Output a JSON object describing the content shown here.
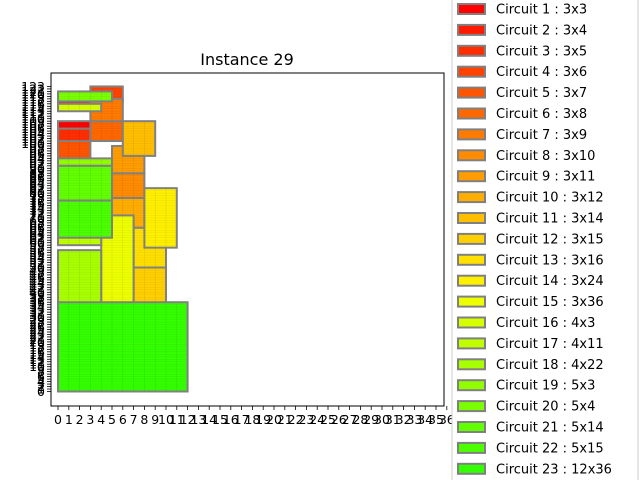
{
  "chart_data": {
    "type": "rectangle-packing",
    "title": "Instance 29",
    "xlim": [
      0,
      36
    ],
    "ylim": [
      0,
      123
    ],
    "x_ticks": [
      0,
      1,
      2,
      3,
      4,
      5,
      6,
      7,
      8,
      9,
      10,
      11,
      12,
      13,
      14,
      15,
      16,
      17,
      18,
      19,
      20,
      21,
      22,
      23,
      24,
      25,
      26,
      27,
      28,
      29,
      30,
      31,
      32,
      33,
      34,
      35,
      36
    ],
    "y_ticks": [
      0,
      1,
      2,
      3,
      4,
      5,
      6,
      7,
      8,
      9,
      10,
      11,
      12,
      13,
      14,
      15,
      16,
      17,
      18,
      19,
      20,
      21,
      22,
      23,
      24,
      25,
      26,
      27,
      28,
      29,
      30,
      31,
      32,
      33,
      34,
      35,
      36,
      37,
      38,
      39,
      40,
      41,
      42,
      43,
      44,
      45,
      46,
      47,
      48,
      49,
      50,
      51,
      52,
      53,
      54,
      55,
      56,
      57,
      58,
      59,
      60,
      61,
      62,
      63,
      64,
      65,
      66,
      67,
      68,
      69,
      70,
      71,
      72,
      73,
      74,
      75,
      76,
      77,
      78,
      79,
      80,
      81,
      82,
      83,
      84,
      85,
      86,
      87,
      88,
      89,
      90,
      91,
      92,
      93,
      94,
      95,
      96,
      97,
      98,
      99,
      100,
      101,
      102,
      103,
      104,
      105,
      106,
      107,
      108,
      109,
      110,
      111,
      112,
      113,
      114,
      115,
      116,
      117,
      118,
      119,
      120,
      121,
      122,
      123
    ],
    "circuits": [
      {
        "label": "Circuit 1 : 3x3",
        "w": 3,
        "h": 3,
        "x": 0,
        "y": 106,
        "color": "#ff0000"
      },
      {
        "label": "Circuit 2 : 3x4",
        "w": 3,
        "h": 4,
        "x": 0,
        "y": 114,
        "color": "#ff1900"
      },
      {
        "label": "Circuit 3 : 3x5",
        "w": 3,
        "h": 5,
        "x": 0,
        "y": 101,
        "color": "#ff2e00"
      },
      {
        "label": "Circuit 4 : 3x6",
        "w": 3,
        "h": 6,
        "x": 3,
        "y": 117,
        "color": "#ff4200"
      },
      {
        "label": "Circuit 5 : 3x7",
        "w": 3,
        "h": 7,
        "x": 0,
        "y": 94,
        "color": "#ff5500"
      },
      {
        "label": "Circuit 6 : 3x8",
        "w": 3,
        "h": 8,
        "x": 3,
        "y": 101,
        "color": "#ff6800"
      },
      {
        "label": "Circuit 7 : 3x9",
        "w": 3,
        "h": 9,
        "x": 3,
        "y": 109,
        "color": "#ff7a00"
      },
      {
        "label": "Circuit 8 : 3x10",
        "w": 3,
        "h": 10,
        "x": 5,
        "y": 78,
        "color": "#ff8c00"
      },
      {
        "label": "Circuit 9 : 3x11",
        "w": 3,
        "h": 11,
        "x": 5,
        "y": 88,
        "color": "#ff9d00"
      },
      {
        "label": "Circuit 10 : 3x12",
        "w": 3,
        "h": 12,
        "x": 5,
        "y": 66,
        "color": "#ffae00"
      },
      {
        "label": "Circuit 11 : 3x14",
        "w": 3,
        "h": 14,
        "x": 6,
        "y": 95,
        "color": "#ffbf00"
      },
      {
        "label": "Circuit 12 : 3x15",
        "w": 3,
        "h": 15,
        "x": 7,
        "y": 35,
        "color": "#ffd000"
      },
      {
        "label": "Circuit 13 : 3x16",
        "w": 3,
        "h": 16,
        "x": 7,
        "y": 50,
        "color": "#ffe000"
      },
      {
        "label": "Circuit 14 : 3x24",
        "w": 3,
        "h": 24,
        "x": 8,
        "y": 58,
        "color": "#fff000"
      },
      {
        "label": "Circuit 15 : 3x36",
        "w": 3,
        "h": 36,
        "x": 4,
        "y": 35,
        "color": "#eeff00"
      },
      {
        "label": "Circuit 16 : 4x3",
        "w": 4,
        "h": 3,
        "x": 0,
        "y": 113,
        "color": "#d6ff00"
      },
      {
        "label": "Circuit 17 : 4x11",
        "w": 4,
        "h": 11,
        "x": 0,
        "y": 59,
        "color": "#bfff00"
      },
      {
        "label": "Circuit 18 : 4x22",
        "w": 4,
        "h": 22,
        "x": 0,
        "y": 35,
        "color": "#a8ff00"
      },
      {
        "label": "Circuit 19 : 5x3",
        "w": 5,
        "h": 3,
        "x": 0,
        "y": 91,
        "color": "#91ff00"
      },
      {
        "label": "Circuit 20 : 5x4",
        "w": 5,
        "h": 4,
        "x": 0,
        "y": 117,
        "color": "#79ff00"
      },
      {
        "label": "Circuit 21 : 5x14",
        "w": 5,
        "h": 14,
        "x": 0,
        "y": 77,
        "color": "#62ff00"
      },
      {
        "label": "Circuit 22 : 5x15",
        "w": 5,
        "h": 15,
        "x": 0,
        "y": 62,
        "color": "#4bff00"
      },
      {
        "label": "Circuit 23 : 12x36",
        "w": 12,
        "h": 36,
        "x": 0,
        "y": 0,
        "color": "#33ff00"
      }
    ]
  }
}
